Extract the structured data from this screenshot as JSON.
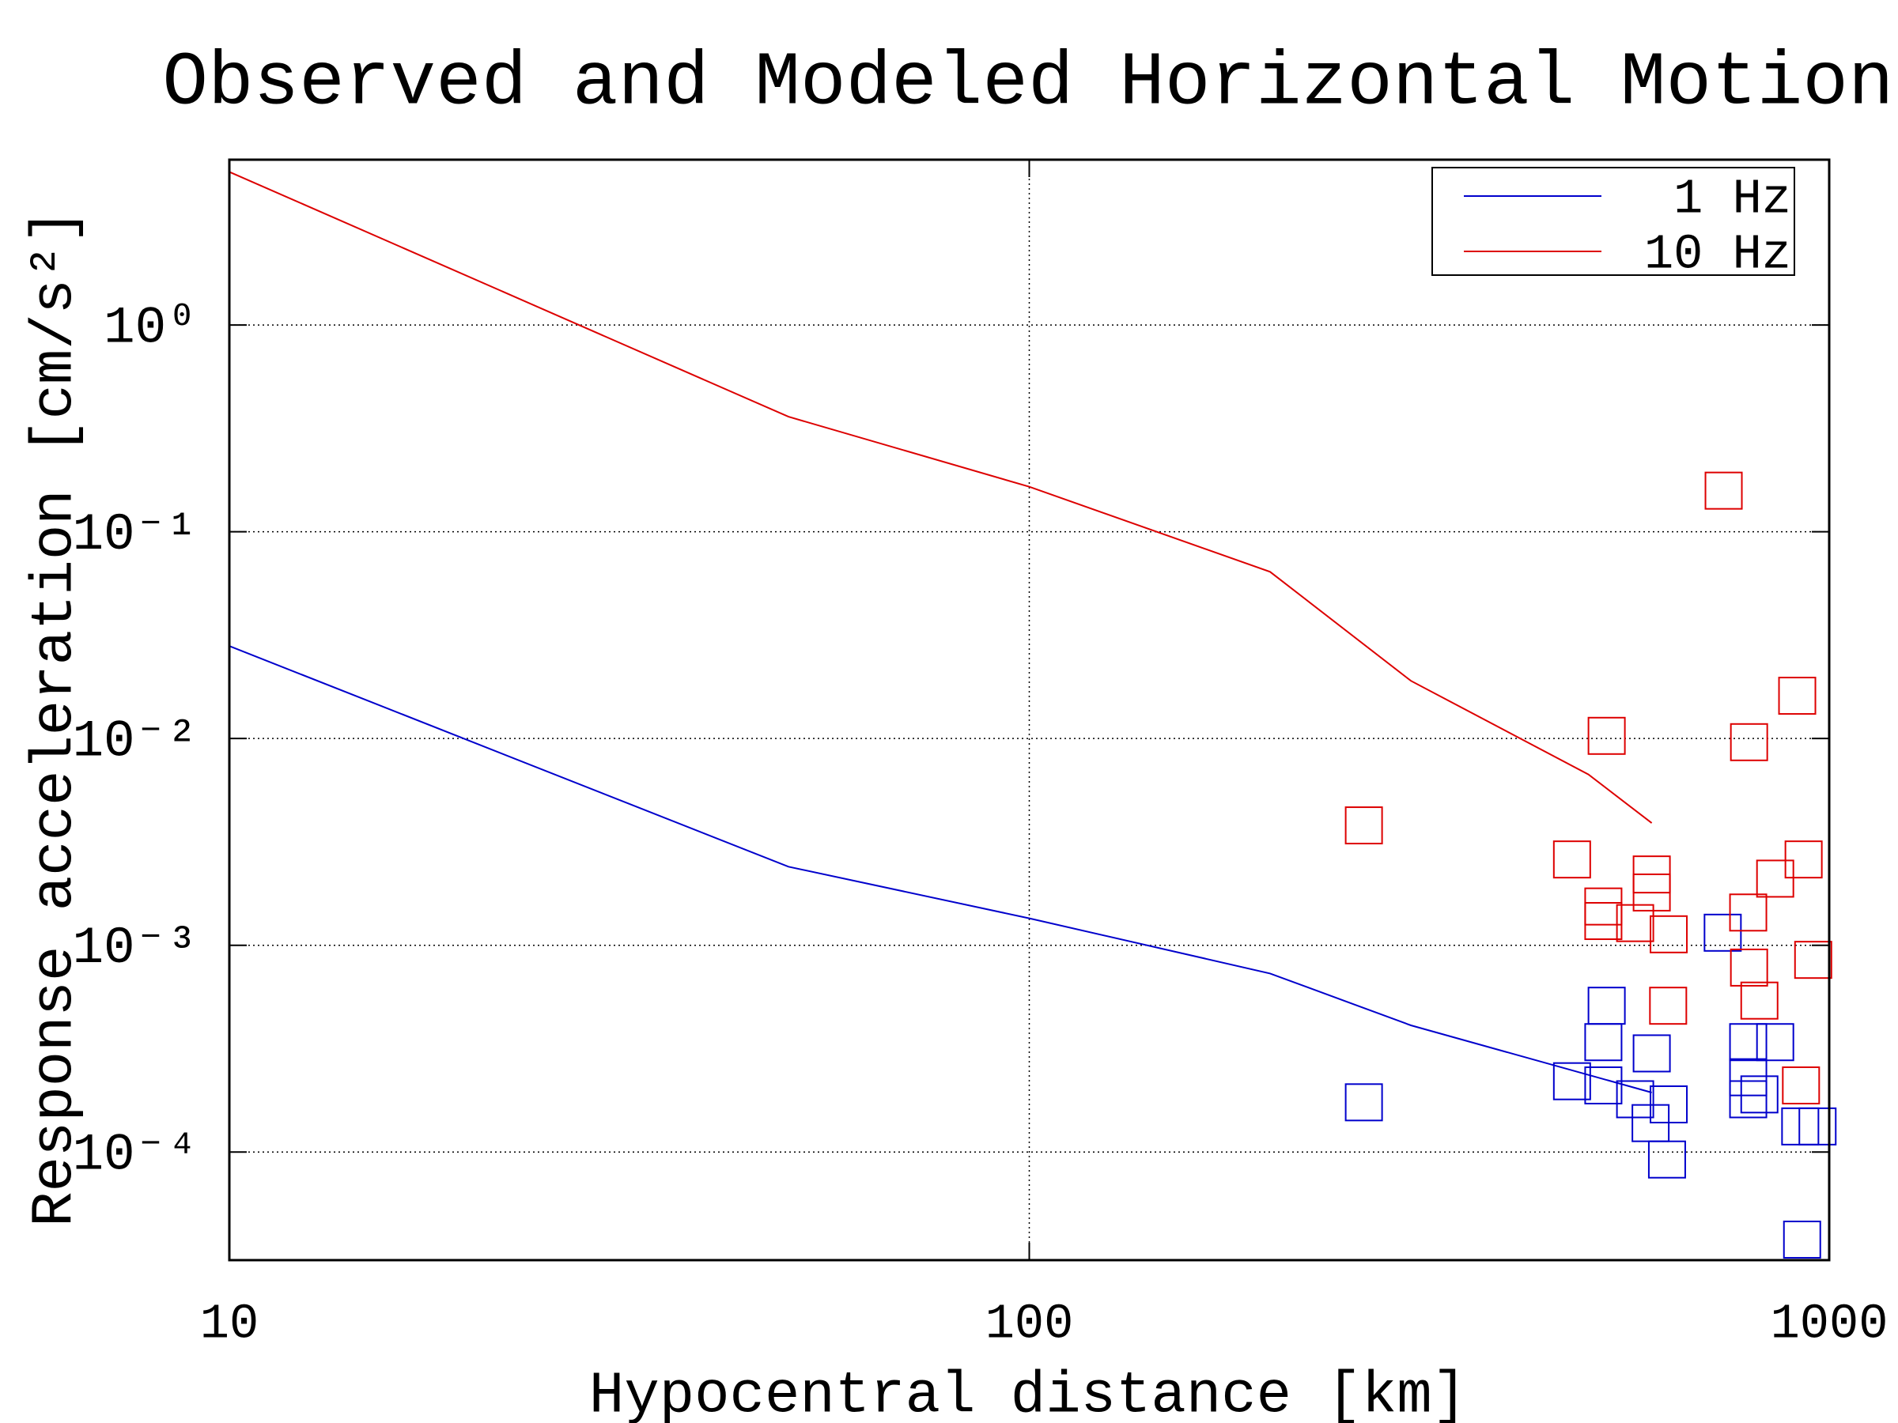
{
  "chart_data": {
    "type": "line",
    "title": "Observed and Modeled Horizontal Motion",
    "x_label": "Hypocentral distance [km]",
    "y_label": "Response acceleration [cm/s²]",
    "xscale": "log",
    "yscale": "log",
    "xlim": [
      10,
      1000
    ],
    "ylim": [
      3e-05,
      6.3
    ],
    "xticks": [
      10,
      100,
      1000
    ],
    "yticks": [
      {
        "value": 0.0001,
        "label": "10⁻⁴"
      },
      {
        "value": 0.001,
        "label": "10⁻³"
      },
      {
        "value": 0.01,
        "label": "10⁻²"
      },
      {
        "value": 0.1,
        "label": "10⁻¹"
      },
      {
        "value": 1,
        "label": "10⁰"
      }
    ],
    "grid": true,
    "legend": "upper right",
    "series": [
      {
        "name": "1 Hz",
        "color": "#0000cc",
        "x": [
          10,
          50,
          100,
          200,
          300,
          600
        ],
        "values": [
          0.028,
          0.0024,
          0.00135,
          0.00073,
          0.00041,
          0.000194
        ]
      },
      {
        "name": "10 Hz",
        "color": "#dd0000",
        "x": [
          10,
          50,
          100,
          200,
          300,
          500,
          600
        ],
        "values": [
          5.5,
          0.36,
          0.165,
          0.064,
          0.019,
          0.0067,
          0.0039
        ]
      }
    ],
    "observations": [
      {
        "color": "#0000cc",
        "x": [
          262,
          736,
          527,
          522,
          600,
          477,
          522,
          572,
          630,
          598,
          627,
          792,
          856,
          792,
          792,
          818,
          920,
          967,
          925
        ],
        "values": [
          0.000174,
          0.00115,
          0.00051,
          0.00034,
          0.0003,
          0.00022,
          0.00021,
          0.00018,
          0.00017,
          0.000138,
          9.2e-05,
          0.00034,
          0.00034,
          0.00023,
          0.00018,
          0.00019,
          0.000133,
          0.000133,
          3.77e-05
        ]
      },
      {
        "color": "#dd0000",
        "x": [
          262,
          738,
          527,
          912,
          794,
          477,
          600,
          600,
          522,
          522,
          572,
          630,
          929,
          856,
          792,
          794,
          955,
          818,
          629,
          922
        ],
        "values": [
          0.0038,
          0.158,
          0.0103,
          0.0161,
          0.0096,
          0.0026,
          0.0022,
          0.0018,
          0.00154,
          0.00131,
          0.00128,
          0.00113,
          0.0026,
          0.0021,
          0.00144,
          0.00078,
          0.00085,
          0.00054,
          0.00051,
          0.00021
        ]
      }
    ]
  }
}
